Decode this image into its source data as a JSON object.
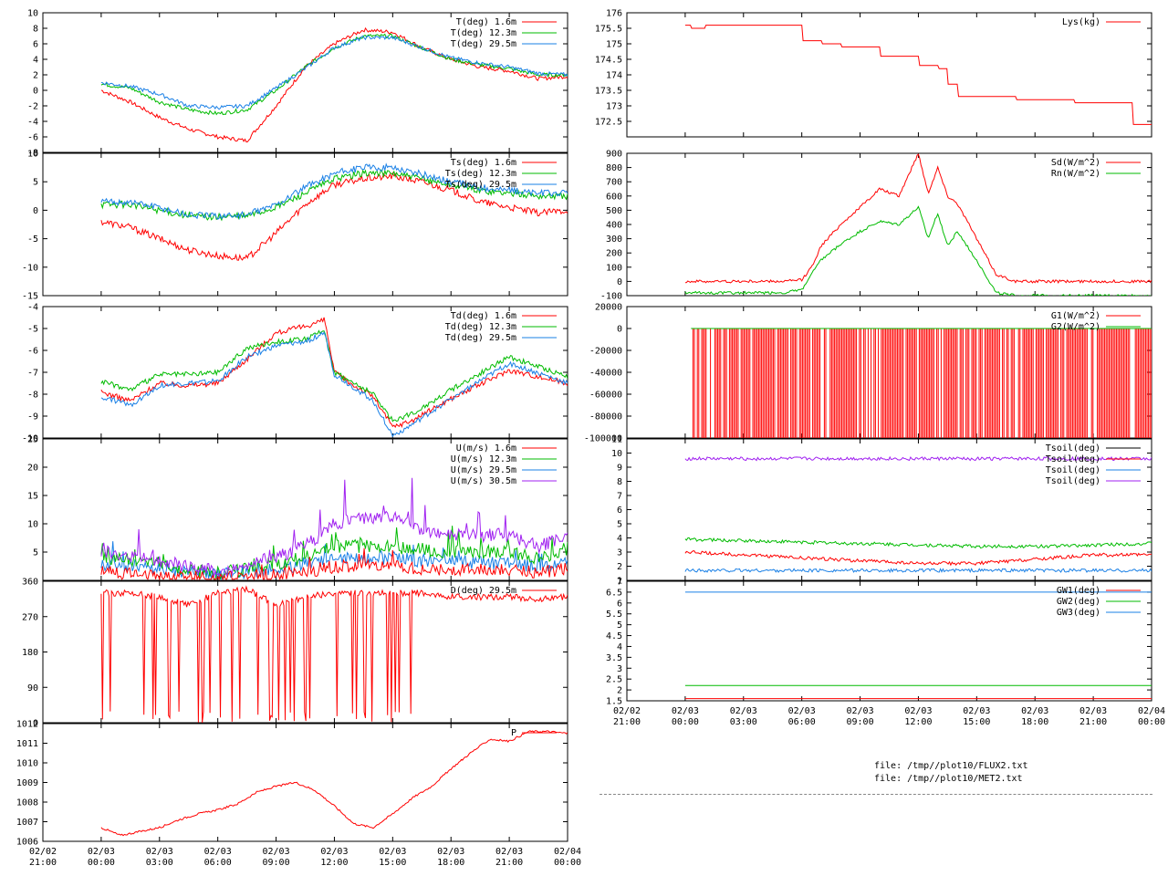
{
  "colors": {
    "red": "#ff0000",
    "green": "#00bb00",
    "blue": "#1a80e6",
    "magenta": "#a020f0",
    "black": "#000000"
  },
  "x_axis": {
    "left": {
      "ticks": [
        {
          "date": "02/02",
          "time": "21:00"
        },
        {
          "date": "02/03",
          "time": "00:00"
        },
        {
          "date": "02/03",
          "time": "03:00"
        },
        {
          "date": "02/03",
          "time": "06:00"
        },
        {
          "date": "02/03",
          "time": "09:00"
        },
        {
          "date": "02/03",
          "time": "12:00"
        },
        {
          "date": "02/03",
          "time": "15:00"
        },
        {
          "date": "02/03",
          "time": "18:00"
        },
        {
          "date": "02/03",
          "time": "21:00"
        },
        {
          "date": "02/04",
          "time": "00:00"
        }
      ]
    },
    "right": {
      "ticks": [
        {
          "date": "02/02",
          "time": "21:00"
        },
        {
          "date": "02/03",
          "time": "00:00"
        },
        {
          "date": "02/03",
          "time": "03:00"
        },
        {
          "date": "02/03",
          "time": "06:00"
        },
        {
          "date": "02/03",
          "time": "09:00"
        },
        {
          "date": "02/03",
          "time": "12:00"
        },
        {
          "date": "02/03",
          "time": "15:00"
        },
        {
          "date": "02/03",
          "time": "18:00"
        },
        {
          "date": "02/03",
          "time": "21:00"
        },
        {
          "date": "02/04",
          "time": "00:00"
        }
      ]
    }
  },
  "files": [
    "file: /tmp//plot10/FLUX2.txt",
    "file: /tmp//plot10/MET2.txt"
  ],
  "chart_data": [
    {
      "id": "temp",
      "type": "line",
      "ylim": [
        -8,
        10
      ],
      "ticks": [
        "10",
        "8",
        "6",
        "4",
        "2",
        "0",
        "-2",
        "-4",
        "-6",
        "-8"
      ],
      "legend": [
        {
          "label": "T(deg)  1.6m",
          "color": "red"
        },
        {
          "label": "T(deg) 12.3m",
          "color": "green"
        },
        {
          "label": "T(deg) 29.5m",
          "color": "blue"
        }
      ],
      "x": [
        0,
        1.5,
        3,
        4.5,
        6,
        7.5,
        9,
        10.5,
        12,
        13.5,
        15,
        16.5,
        18,
        19.5,
        21,
        22.5,
        24
      ],
      "series": [
        {
          "color": "red",
          "values": [
            0,
            -1.5,
            -3.5,
            -5,
            -6,
            -6.5,
            -2,
            3,
            6,
            7.8,
            7.5,
            5.5,
            4,
            3,
            2.5,
            1.5,
            1.8
          ]
        },
        {
          "color": "green",
          "values": [
            0.8,
            0.3,
            -1.5,
            -2.5,
            -3,
            -2.5,
            0,
            3,
            5.5,
            7,
            7,
            5.5,
            4,
            3.3,
            2.8,
            2,
            2
          ]
        },
        {
          "color": "blue",
          "values": [
            1,
            0.5,
            -0.5,
            -2,
            -2.2,
            -2,
            0.3,
            2.8,
            5.5,
            6.8,
            6.8,
            5.5,
            4.2,
            3.5,
            3,
            2.2,
            2
          ]
        }
      ]
    },
    {
      "id": "tsurf",
      "type": "line",
      "ylim": [
        -15,
        10
      ],
      "ticks": [
        "10",
        "5",
        "0",
        "-5",
        "-10",
        "-15"
      ],
      "legend": [
        {
          "label": "Ts(deg)  1.6m",
          "color": "red"
        },
        {
          "label": "Ts(deg) 12.3m",
          "color": "green"
        },
        {
          "label": "Ts(deg) 29.5m",
          "color": "blue"
        }
      ],
      "x": [
        0,
        1.5,
        3,
        4.5,
        6,
        7.5,
        9,
        10.5,
        12,
        13.5,
        15,
        16.5,
        18,
        19.5,
        21,
        22.5,
        24
      ],
      "series": [
        {
          "color": "red",
          "values": [
            -2,
            -3,
            -5,
            -7,
            -8,
            -8.5,
            -4,
            1,
            4.5,
            5.5,
            6,
            5,
            3.5,
            1.5,
            0.5,
            -0.5,
            0
          ]
        },
        {
          "color": "green",
          "values": [
            1,
            1,
            0,
            -1,
            -1.2,
            -1,
            0.5,
            3,
            5.5,
            6.5,
            6.5,
            5.5,
            4.5,
            3.5,
            3,
            2.5,
            2.5
          ]
        },
        {
          "color": "blue",
          "values": [
            1.5,
            1.5,
            0.5,
            -0.8,
            -1,
            -0.8,
            1,
            4,
            6.5,
            7.5,
            7.5,
            6.3,
            5,
            4,
            3.5,
            3,
            3
          ]
        }
      ]
    },
    {
      "id": "dew",
      "type": "line",
      "ylim": [
        -10,
        -4
      ],
      "ticks": [
        "-4",
        "-5",
        "-6",
        "-7",
        "-8",
        "-9",
        "-10"
      ],
      "legend": [
        {
          "label": "Td(deg)  1.6m",
          "color": "red"
        },
        {
          "label": "Td(deg) 12.3m",
          "color": "green"
        },
        {
          "label": "Td(deg) 29.5m",
          "color": "blue"
        }
      ],
      "x": [
        0,
        1.5,
        3,
        4.5,
        6,
        7.5,
        9,
        10.5,
        11.5,
        12,
        13,
        14,
        15,
        16,
        18,
        21,
        24
      ],
      "series": [
        {
          "color": "red",
          "values": [
            -7.9,
            -8.3,
            -7.5,
            -7.6,
            -7.5,
            -6.4,
            -5.2,
            -4.9,
            -4.6,
            -7,
            -7.6,
            -8.1,
            -9.5,
            -9.2,
            -8.2,
            -6.9,
            -7.5
          ]
        },
        {
          "color": "green",
          "values": [
            -7.4,
            -7.8,
            -7.1,
            -7.1,
            -7,
            -5.9,
            -5.6,
            -5.5,
            -5.1,
            -7,
            -7.5,
            -8,
            -9.2,
            -8.9,
            -7.8,
            -6.3,
            -7.2
          ]
        },
        {
          "color": "blue",
          "values": [
            -8.1,
            -8.5,
            -7.6,
            -7.5,
            -7.4,
            -6.3,
            -5.8,
            -5.6,
            -5.2,
            -7.1,
            -7.7,
            -8.3,
            -9.9,
            -9.4,
            -8.2,
            -6.6,
            -7.5
          ]
        }
      ]
    },
    {
      "id": "wind",
      "type": "line",
      "ylim": [
        0,
        25
      ],
      "ticks": [
        "25",
        "20",
        "15",
        "10",
        "5"
      ],
      "legend": [
        {
          "label": "U(m/s)  1.6m",
          "color": "red"
        },
        {
          "label": "U(m/s) 12.3m",
          "color": "green"
        },
        {
          "label": "U(m/s) 29.5m",
          "color": "blue"
        },
        {
          "label": "U(m/s) 30.5m",
          "color": "magenta"
        }
      ],
      "x": [
        0,
        1.5,
        3,
        4.5,
        6,
        7.5,
        9,
        10.5,
        12,
        13.5,
        15,
        16.5,
        18,
        19.5,
        21,
        22.5,
        24
      ],
      "series": [
        {
          "color": "blue",
          "values": [
            3,
            2.5,
            2,
            1.5,
            1,
            1.5,
            2,
            3,
            4,
            4,
            4,
            3.5,
            3.5,
            3,
            3,
            2.5,
            3
          ]
        },
        {
          "color": "green",
          "values": [
            4,
            3.5,
            3,
            2,
            1.2,
            2,
            3,
            4,
            6,
            6,
            6,
            5.5,
            5,
            5,
            5,
            4,
            5
          ]
        },
        {
          "color": "magenta",
          "values": [
            5,
            4.5,
            3.5,
            2.5,
            1.5,
            3,
            4,
            6,
            10,
            11,
            11,
            9,
            8,
            8,
            8,
            6,
            8
          ]
        },
        {
          "color": "red",
          "values": [
            1.5,
            1,
            1,
            0.5,
            0.5,
            0.8,
            1,
            1.5,
            2.5,
            2.5,
            2.5,
            2,
            2,
            2,
            2,
            1.5,
            2
          ]
        }
      ]
    },
    {
      "id": "dir",
      "type": "line",
      "ylim": [
        0,
        360
      ],
      "ticks": [
        "360",
        "270",
        "180",
        "90",
        "0"
      ],
      "legend": [
        {
          "label": "D(deg) 29.5m",
          "color": "red"
        }
      ],
      "x": [
        0,
        1.5,
        3,
        4.5,
        6,
        7.5,
        9,
        10.5,
        12,
        13.5,
        15,
        16.5,
        18,
        19.5,
        21,
        22.5,
        24
      ],
      "series": [
        {
          "color": "red",
          "values": [
            330,
            330,
            320,
            300,
            330,
            340,
            300,
            320,
            330,
            330,
            330,
            330,
            320,
            320,
            320,
            315,
            320
          ]
        }
      ]
    },
    {
      "id": "pres",
      "type": "line",
      "ylim": [
        1006,
        1012
      ],
      "ticks": [
        "1012",
        "1011",
        "1010",
        "1009",
        "1008",
        "1007",
        "1006"
      ],
      "legend": [
        {
          "label": "P",
          "color": "red"
        }
      ],
      "x": [
        0,
        1,
        2,
        3,
        4,
        5,
        6,
        7,
        8,
        9,
        10,
        11,
        12,
        13,
        14,
        15,
        16,
        17,
        18,
        19,
        20,
        21,
        22,
        23,
        24
      ],
      "series": [
        {
          "color": "red",
          "values": [
            1006.7,
            1006.3,
            1006.5,
            1006.7,
            1007.1,
            1007.4,
            1007.6,
            1007.9,
            1008.5,
            1008.8,
            1009,
            1008.6,
            1007.8,
            1006.9,
            1006.7,
            1007.4,
            1008.2,
            1008.8,
            1009.7,
            1010.5,
            1011.2,
            1011.1,
            1011.6,
            1011.6,
            1011.5
          ]
        }
      ]
    },
    {
      "id": "lys",
      "type": "line",
      "ylim": [
        172,
        176
      ],
      "ticks": [
        "176",
        "175.5",
        "175",
        "174.5",
        "174",
        "173.5",
        "173",
        "172.5"
      ],
      "legend": [
        {
          "label": "Lys(kg)",
          "color": "red"
        }
      ],
      "x": [
        0,
        0.3,
        1,
        5.5,
        6,
        7,
        8,
        10,
        12,
        13,
        13.5,
        14,
        15,
        17,
        20,
        22.5,
        23,
        24
      ],
      "series": [
        {
          "color": "red",
          "values": [
            175.6,
            175.5,
            175.6,
            175.6,
            175.1,
            175,
            174.9,
            174.6,
            174.3,
            174.2,
            173.7,
            173.3,
            173.3,
            173.2,
            173.1,
            173.1,
            172.4,
            172.4
          ]
        }
      ]
    },
    {
      "id": "rad",
      "type": "line",
      "ylim": [
        -100,
        900
      ],
      "ticks": [
        "900",
        "800",
        "700",
        "600",
        "500",
        "400",
        "300",
        "200",
        "100",
        "0",
        "-100"
      ],
      "legend": [
        {
          "label": "Sd(W/m^2)",
          "color": "red"
        },
        {
          "label": "Rn(W/m^2)",
          "color": "green"
        }
      ],
      "x": [
        0,
        3,
        5,
        6,
        6.5,
        7,
        8,
        9,
        10,
        11,
        12,
        12.5,
        13,
        13.5,
        14,
        15,
        16,
        17,
        18,
        24
      ],
      "series": [
        {
          "color": "red",
          "values": [
            0,
            0,
            0,
            10,
            100,
            250,
            400,
            520,
            650,
            600,
            900,
            620,
            800,
            600,
            550,
            300,
            50,
            0,
            0,
            0
          ]
        },
        {
          "color": "green",
          "values": [
            -80,
            -80,
            -80,
            -60,
            50,
            150,
            260,
            350,
            420,
            400,
            520,
            300,
            480,
            250,
            350,
            150,
            -80,
            -100,
            -100,
            -100
          ]
        }
      ]
    },
    {
      "id": "ground",
      "type": "bar",
      "ylim": [
        -100000,
        20000
      ],
      "ticks": [
        "20000",
        "0",
        "-20000",
        "-40000",
        "-60000",
        "-80000",
        "-100000"
      ],
      "legend": [
        {
          "label": "G1(W/m^2)",
          "color": "red"
        },
        {
          "label": "G2(W/m^2)",
          "color": "green"
        }
      ],
      "note": "G1 alternates between 0 and -100000 (missing) throughout 02/03 00:30 to 02/04 00:00; G2 stays at 0"
    },
    {
      "id": "soil",
      "type": "line",
      "ylim": [
        1,
        11
      ],
      "ticks": [
        "11",
        "10",
        "9",
        "8",
        "7",
        "6",
        "5",
        "4",
        "3",
        "2",
        "1"
      ],
      "legend": [
        {
          "label": "Tsoil(deg)",
          "color": "black"
        },
        {
          "label": "Tsoil(deg)",
          "color": "red"
        },
        {
          "label": "Tsoil(deg)",
          "color": "blue"
        },
        {
          "label": "Tsoil(deg)",
          "color": "magenta"
        }
      ],
      "x": [
        0,
        3,
        6,
        9,
        12,
        15,
        18,
        21,
        24
      ],
      "series": [
        {
          "color": "magenta",
          "values": [
            9.6,
            9.6,
            9.6,
            9.6,
            9.6,
            9.6,
            9.6,
            9.6,
            9.6
          ]
        },
        {
          "color": "green",
          "values": [
            3.9,
            3.8,
            3.7,
            3.6,
            3.5,
            3.4,
            3.4,
            3.5,
            3.6
          ]
        },
        {
          "color": "red",
          "values": [
            3,
            2.8,
            2.6,
            2.4,
            2.2,
            2.2,
            2.5,
            2.8,
            2.8
          ]
        },
        {
          "color": "blue",
          "values": [
            1.7,
            1.7,
            1.7,
            1.7,
            1.7,
            1.7,
            1.7,
            1.7,
            1.7
          ]
        }
      ]
    },
    {
      "id": "gw",
      "type": "line",
      "ylim": [
        1.5,
        7
      ],
      "ticks": [
        "7",
        "6.5",
        "6",
        "5.5",
        "5",
        "4.5",
        "4",
        "3.5",
        "3",
        "2.5",
        "2",
        "1.5"
      ],
      "legend": [
        {
          "label": "GW1(deg)",
          "color": "red"
        },
        {
          "label": "GW2(deg)",
          "color": "green"
        },
        {
          "label": "GW3(deg)",
          "color": "blue"
        }
      ],
      "x": [
        0,
        24
      ],
      "series": [
        {
          "color": "blue",
          "values": [
            6.5,
            6.5
          ]
        },
        {
          "color": "green",
          "values": [
            2.2,
            2.2
          ]
        },
        {
          "color": "red",
          "values": [
            1.6,
            1.6
          ]
        }
      ]
    }
  ]
}
